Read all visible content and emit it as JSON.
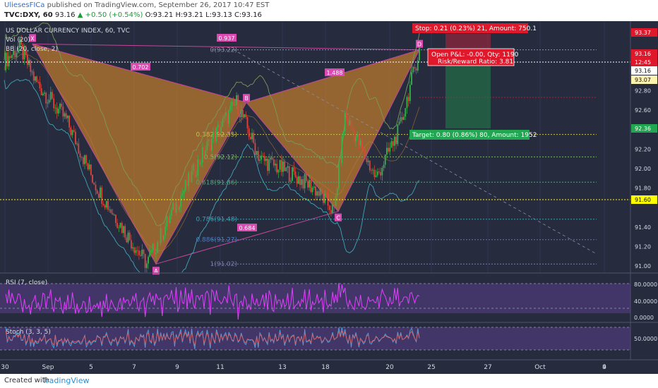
{
  "header": {
    "user": "UliesesFICa",
    "published": "published on TradingView.com, September 26, 2017 10:47 EST",
    "symbol": "TVC:DXY, 60",
    "last": "93.16",
    "change": "▲ +0.50 (+0.54%)",
    "o": "O:93.21",
    "h": "H:93.21",
    "l": "L:93.13",
    "c": "C:93.16"
  },
  "footer": {
    "created": "Created with",
    "brand": "TradingView"
  },
  "chart_data": {
    "type": "line",
    "title": "US DOLLAR CURRENCY INDEX, 60, TVC",
    "indicators": [
      "Vol (20)",
      "BB (20, close, 2)"
    ],
    "ylim": [
      90.92,
      93.5
    ],
    "y_ticks": [
      "93.37",
      "93.16",
      "93.16",
      "93.07",
      "92.80",
      "92.60",
      "92.36",
      "92.20",
      "92.00",
      "91.80",
      "91.60",
      "91.40",
      "91.20",
      "91.00"
    ],
    "x_labels": [
      "30",
      "Sep",
      "5",
      "7",
      "9",
      "11",
      "13",
      "18",
      "20",
      "25",
      "27",
      "Oct",
      "4",
      "9"
    ],
    "price_tags": [
      {
        "label": "93.37",
        "color": "#e0182b"
      },
      {
        "label": "93.16",
        "color": "#e0182b"
      },
      {
        "label": "12:45",
        "color": "#e0182b"
      },
      {
        "label": "93.16",
        "color": "#ffffff"
      },
      {
        "label": "93.07",
        "color": "#fff3b0"
      },
      {
        "label": "92.36",
        "color": "#22a652"
      },
      {
        "label": "91.60",
        "color": "#ffff00"
      }
    ],
    "pattern": {
      "points": [
        {
          "label": "X",
          "t": 6,
          "price": 93.28
        },
        {
          "label": "A",
          "t": 92,
          "price": 91.02
        },
        {
          "label": "B",
          "t": 150,
          "price": 92.68
        },
        {
          "label": "C",
          "t": 213,
          "price": 91.56
        },
        {
          "label": "D",
          "t": 268,
          "price": 93.22
        }
      ],
      "ratios": [
        "0.702",
        "0.937",
        "1.488",
        "0.684"
      ]
    },
    "fib_levels": [
      {
        "label": "0(93.22)",
        "price": 93.22
      },
      {
        "label": "0.382(92.35)",
        "price": 92.35
      },
      {
        "label": "0.5(92.12)",
        "price": 92.12
      },
      {
        "label": "0.618(91.86)",
        "price": 91.86
      },
      {
        "label": "0.786(91.48)",
        "price": 91.48
      },
      {
        "label": "0.886(91.27)",
        "price": 91.27
      },
      {
        "label": "1(91.02)",
        "price": 91.02
      }
    ],
    "position": {
      "stop": "Stop: 0.21 (0.23%) 21, Amount: 750.1",
      "open": "Open P&L: -0.00, Qty: 1190",
      "rr": "Risk/Reward Ratio: 3.81",
      "target": "Target: 0.80 (0.86%) 80, Amount: 1952"
    },
    "rsi": {
      "title": "RSI (7, close)",
      "ticks": [
        "80.0000",
        "40.0000",
        "0.0000"
      ]
    },
    "stoch": {
      "title": "Stoch (3, 3, 5)",
      "ticks": [
        "50.0000"
      ]
    }
  }
}
